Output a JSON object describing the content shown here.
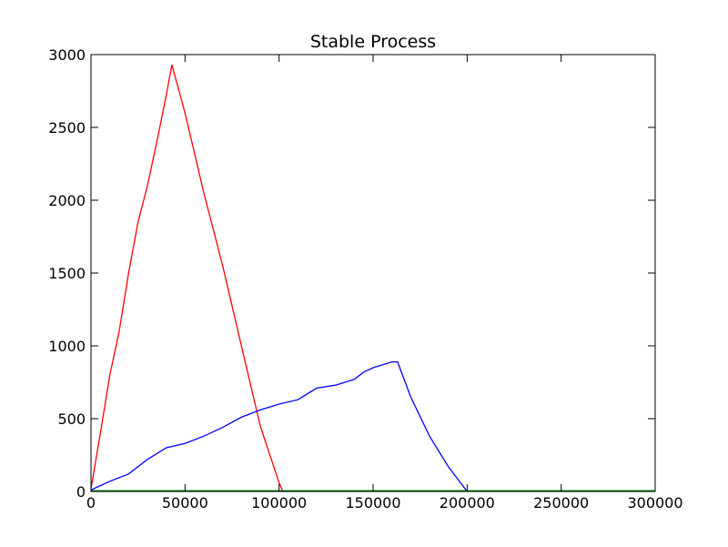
{
  "chart_data": {
    "type": "line",
    "title": "Stable Process",
    "xlabel": "",
    "ylabel": "",
    "xlim": [
      0,
      300000
    ],
    "ylim": [
      0,
      3000
    ],
    "xticks": [
      0,
      50000,
      100000,
      150000,
      200000,
      250000,
      300000
    ],
    "yticks": [
      0,
      500,
      1000,
      1500,
      2000,
      2500,
      3000
    ],
    "grid": false,
    "legend": "none",
    "series": [
      {
        "color": "#ff0000",
        "x": [
          0,
          5000,
          10000,
          15000,
          20000,
          25000,
          30000,
          35000,
          40000,
          43000,
          50000,
          60000,
          70000,
          80000,
          90000,
          100000,
          102000
        ],
        "y": [
          20,
          400,
          800,
          1100,
          1500,
          1850,
          2100,
          2400,
          2720,
          2930,
          2600,
          2050,
          1550,
          1000,
          450,
          60,
          0
        ]
      },
      {
        "color": "#0000ff",
        "x": [
          0,
          5000,
          10000,
          20000,
          30000,
          40000,
          50000,
          60000,
          70000,
          80000,
          90000,
          100000,
          110000,
          120000,
          130000,
          140000,
          145000,
          150000,
          160000,
          163000,
          170000,
          180000,
          190000,
          200000
        ],
        "y": [
          10,
          40,
          70,
          120,
          220,
          300,
          330,
          380,
          440,
          510,
          560,
          600,
          630,
          710,
          730,
          770,
          820,
          850,
          890,
          890,
          650,
          380,
          170,
          0
        ]
      },
      {
        "color": "#008000",
        "x": [
          0,
          50000,
          100000,
          150000,
          200000,
          250000,
          300000
        ],
        "y": [
          5,
          5,
          5,
          5,
          5,
          5,
          5
        ]
      }
    ]
  }
}
